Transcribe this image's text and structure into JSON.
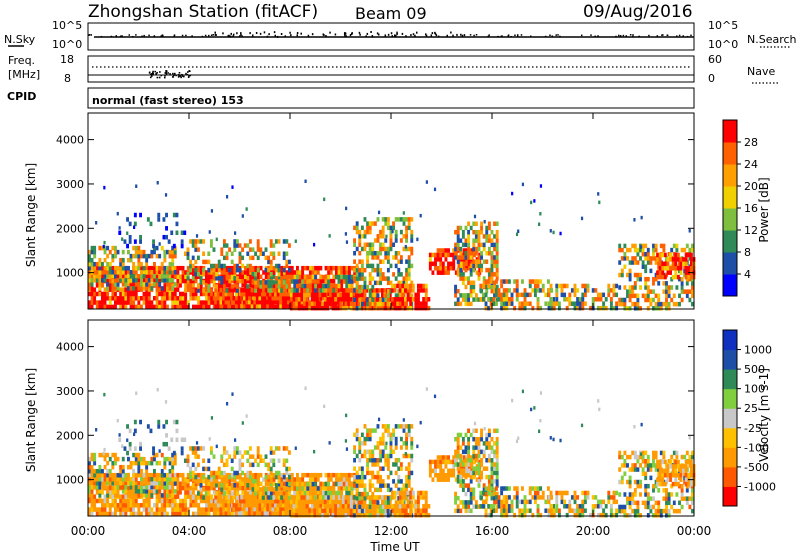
{
  "header": {
    "station": "Zhongshan Station (fitACF)",
    "beam": "Beam 09",
    "date": "09/Aug/2016"
  },
  "top_panels": {
    "nsky_label": "N.Sky",
    "nsky_ticks": [
      "10^5",
      "10^0"
    ],
    "nsearch_label": "N.Search",
    "nsearch_ticks": [
      "10^5",
      "10^0"
    ],
    "freq_label_1": "Freq.",
    "freq_label_2": "[MHz]",
    "freq_ticks": [
      "18",
      "8"
    ],
    "nave_label": "Nave",
    "nave_ticks": [
      "60",
      "0"
    ],
    "cpid_label": "CPID",
    "cpid_text": "normal (fast stereo) 153"
  },
  "colors": {
    "power": [
      "#0000ff",
      "#1e4fa8",
      "#2e8b57",
      "#7fbf3f",
      "#f0d000",
      "#ffa000",
      "#ff6000",
      "#ff0000"
    ],
    "velocity": [
      "#ff0000",
      "#ff5a00",
      "#ff9a00",
      "#ffc000",
      "#c8c8c8",
      "#7fcf3f",
      "#2e8b57",
      "#1e4fa8",
      "#1030c0"
    ]
  },
  "chart_data": [
    {
      "type": "heatmap",
      "name": "power-panel",
      "ylabel": "Slant Range [km]",
      "xlabel": "",
      "yticks": [
        "1000",
        "2000",
        "3000",
        "4000"
      ],
      "yticks_values": [
        1000,
        2000,
        3000,
        4000
      ],
      "ylim": [
        180,
        4600
      ],
      "xlim_hours": [
        0,
        24
      ],
      "colorbar_label": "Power [dB]",
      "colorbar_ticks": [
        "4",
        "8",
        "12",
        "16",
        "20",
        "24",
        "28"
      ],
      "colorbar_range": [
        0,
        32
      ]
    },
    {
      "type": "heatmap",
      "name": "velocity-panel",
      "ylabel": "Slant Range [km]",
      "xlabel": "Time UT",
      "xticks": [
        "00:00",
        "04:00",
        "08:00",
        "12:00",
        "16:00",
        "20:00",
        "00:00"
      ],
      "xticks_hours": [
        0,
        4,
        8,
        12,
        16,
        20,
        24
      ],
      "yticks": [
        "1000",
        "2000",
        "3000",
        "4000"
      ],
      "yticks_values": [
        1000,
        2000,
        3000,
        4000
      ],
      "ylim": [
        180,
        4600
      ],
      "xlim_hours": [
        0,
        24
      ],
      "colorbar_label": "Velocity [m s-1]",
      "colorbar_ticks": [
        "1000",
        "500",
        "100",
        "25",
        "-25",
        "-100",
        "-500",
        "-1000"
      ]
    }
  ]
}
